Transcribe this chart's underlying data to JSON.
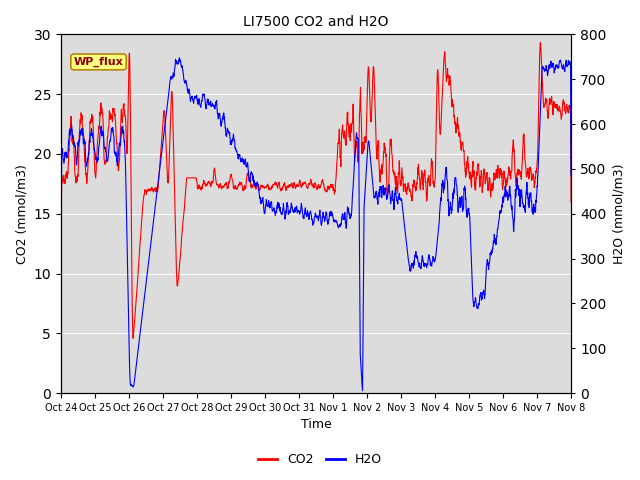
{
  "title": "LI7500 CO2 and H2O",
  "xlabel": "Time",
  "ylabel_left": "CO2 (mmol/m3)",
  "ylabel_right": "H2O (mmol/m3)",
  "annotation": "WP_flux",
  "x_tick_labels": [
    "Oct 24",
    "Oct 25",
    "Oct 26",
    "Oct 27",
    "Oct 28",
    "Oct 29",
    "Oct 30",
    "Oct 31",
    "Nov 1",
    "Nov 2",
    "Nov 3",
    "Nov 4",
    "Nov 5",
    "Nov 6",
    "Nov 7",
    "Nov 8"
  ],
  "ylim_left": [
    0,
    30
  ],
  "ylim_right": [
    0,
    800
  ],
  "yticks_left": [
    0,
    5,
    10,
    15,
    20,
    25,
    30
  ],
  "yticks_right": [
    0,
    100,
    200,
    300,
    400,
    500,
    600,
    700,
    800
  ],
  "co2_color": "#FF0000",
  "h2o_color": "#0000FF",
  "bg_color": "#DCDCDC",
  "legend_co2": "CO2",
  "legend_h2o": "H2O",
  "annotation_bg": "#FFFF80",
  "annotation_border": "#B8860B",
  "annotation_text_color": "#8B0000"
}
